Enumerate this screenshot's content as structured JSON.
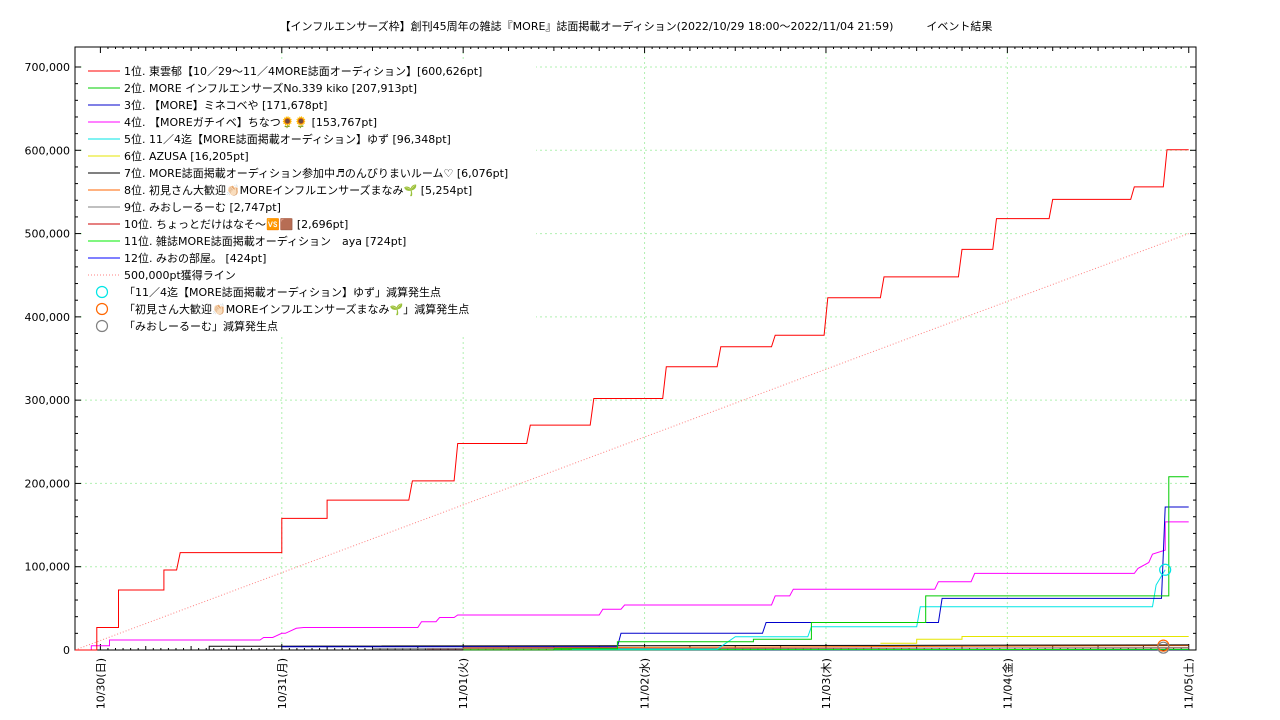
{
  "chart_data": {
    "type": "line",
    "title": "【インフルエンサーズ枠】創刊45周年の雑誌『MORE』誌面掲載オーディション(2022/10/29 18:00〜2022/11/04 21:59)　　　イベント結果",
    "xlabel": "",
    "ylabel": "",
    "ylim": [
      0,
      700000
    ],
    "xlim": [
      -0.14,
      6.04
    ],
    "x_unit_note": "days since 10/30 00:00",
    "x_tick_labels": [
      "10/30(日)",
      "10/31(月)",
      "11/01(火)",
      "11/02(水)",
      "11/03(木)",
      "11/04(金)",
      "11/05(土)"
    ],
    "y_tick_labels": [
      "0",
      "100,000",
      "200,000",
      "300,000",
      "400,000",
      "500,000",
      "600,000",
      "700,000"
    ],
    "y_ticks": [
      0,
      100000,
      200000,
      300000,
      400000,
      500000,
      600000,
      700000
    ],
    "grid": true,
    "legend_position": "top-left",
    "series": [
      {
        "name": "1位. 東雲郁【10／29〜11／4MORE誌面オーディション】[600,626pt]",
        "color": "#ff0000",
        "x": [
          -0.14,
          -0.02,
          -0.02,
          0.1,
          0.1,
          0.35,
          0.35,
          0.42,
          0.44,
          1.0,
          1.0,
          1.25,
          1.25,
          1.7,
          1.72,
          1.95,
          1.97,
          2.35,
          2.37,
          2.7,
          2.72,
          3.1,
          3.12,
          3.4,
          3.42,
          3.7,
          3.72,
          3.99,
          4.01,
          4.3,
          4.32,
          4.73,
          4.75,
          4.92,
          4.94,
          5.23,
          5.25,
          5.68,
          5.7,
          5.86,
          5.88,
          6.0
        ],
        "y": [
          0,
          0,
          27000,
          27000,
          72000,
          72000,
          96000,
          96000,
          117000,
          117000,
          158000,
          158000,
          180000,
          180000,
          203000,
          203000,
          248000,
          248000,
          270000,
          270000,
          302000,
          302000,
          340000,
          340000,
          364000,
          364000,
          378000,
          378000,
          423000,
          423000,
          448000,
          448000,
          481000,
          481000,
          518000,
          518000,
          541000,
          541000,
          556000,
          556000,
          600626,
          600626
        ]
      },
      {
        "name": "2位. MORE インフルエンサーズNo.339 kiko [207,913pt]",
        "color": "#00cc00",
        "x": [
          2.5,
          2.85,
          2.85,
          3.6,
          3.6,
          3.92,
          3.92,
          4.55,
          4.55,
          5.89,
          5.89,
          6.0
        ],
        "y": [
          1500,
          1500,
          10000,
          10000,
          13000,
          13000,
          33000,
          33000,
          65000,
          65000,
          207913,
          207913
        ]
      },
      {
        "name": "3位. 【MORE】ミネコベや [171,678pt]",
        "color": "#0000cc",
        "x": [
          1.0,
          2.85,
          2.87,
          3.65,
          3.67,
          4.62,
          4.64,
          5.85,
          5.87,
          6.0
        ],
        "y": [
          4000,
          4000,
          20000,
          20000,
          33000,
          33000,
          62000,
          62000,
          171678,
          171678
        ]
      },
      {
        "name": "4位. 【MOREガチイベ】ちなつ🌻🌻 [153,767pt]",
        "color": "#ff00ff",
        "x": [
          -0.05,
          -0.05,
          0.05,
          0.05,
          0.88,
          0.9,
          0.95,
          1.0,
          1.02,
          1.08,
          1.12,
          1.75,
          1.77,
          1.85,
          1.87,
          1.95,
          1.97,
          2.75,
          2.77,
          2.87,
          2.89,
          3.7,
          3.72,
          3.8,
          3.82,
          4.6,
          4.62,
          4.8,
          4.82,
          5.7,
          5.72,
          5.78,
          5.8,
          5.87,
          5.87,
          6.0
        ],
        "y": [
          0,
          5000,
          5000,
          12000,
          12000,
          15000,
          15000,
          20000,
          20000,
          26000,
          27000,
          27000,
          34000,
          34000,
          39000,
          39000,
          42000,
          42000,
          49000,
          49000,
          54000,
          54000,
          65000,
          65000,
          73000,
          73000,
          82000,
          82000,
          92000,
          92000,
          98000,
          105000,
          115000,
          120000,
          153767,
          153767
        ]
      },
      {
        "name": "5位. 11／4迄【MORE誌面掲載オーディション】ゆず [96,348pt]",
        "color": "#00e5e5",
        "x": [
          2.6,
          3.4,
          3.5,
          3.9,
          3.92,
          4.5,
          4.52,
          5.8,
          5.82,
          5.87
        ],
        "y": [
          1000,
          1000,
          16000,
          16000,
          28000,
          28000,
          52000,
          52000,
          78000,
          96348
        ]
      },
      {
        "name": "6位. AZUSA [16,205pt]",
        "color": "#e5e500",
        "x": [
          4.3,
          4.5,
          4.5,
          4.75,
          4.75,
          6.0
        ],
        "y": [
          8000,
          8000,
          13000,
          13000,
          16205,
          16205
        ]
      },
      {
        "name": "7位. MORE誌面掲載オーディション参加中♬のんびりまいルーム♡ [6,076pt]",
        "color": "#000000",
        "x": [
          0.6,
          0.6,
          6.0
        ],
        "y": [
          0,
          4500,
          6076
        ]
      },
      {
        "name": "8位. 初見さん大歓迎👏🏻MOREインフルエンサーズまなみ🌱 [5,254pt]",
        "color": "#ff6600",
        "x": [
          2.0,
          6.0
        ],
        "y": [
          2500,
          5254
        ]
      },
      {
        "name": "9位. みおしーるーむ [2,747pt]",
        "color": "#808080",
        "x": [
          1.5,
          6.0
        ],
        "y": [
          1500,
          2747
        ]
      },
      {
        "name": "10位. ちょっとだけはなそ〜🆚🟫 [2,696pt]",
        "color": "#cc0000",
        "x": [
          1.8,
          6.0
        ],
        "y": [
          1500,
          2696
        ]
      },
      {
        "name": "11位. 雑誌MORE誌面掲載オーディション　aya [724pt]",
        "color": "#00ee00",
        "x": [
          2.0,
          6.0
        ],
        "y": [
          300,
          724
        ]
      },
      {
        "name": "12位. みおの部屋。 [424pt]",
        "color": "#0000ff",
        "x": [
          2.5,
          6.0
        ],
        "y": [
          200,
          424
        ]
      }
    ],
    "reference_line": {
      "name": "500,000pt獲得ライン",
      "color": "#ff8080",
      "x": [
        -0.14,
        6.0
      ],
      "y": [
        0,
        500000
      ]
    },
    "markers": [
      {
        "name": "「11／4迄【MORE誌面掲載オーディション】ゆず」減算発生点",
        "color": "#00e5e5",
        "x": 5.87,
        "y": 96348
      },
      {
        "name": "「初見さん大歓迎👏🏻MOREインフルエンサーズまなみ🌱」減算発生点",
        "color": "#ff6600",
        "x": 5.86,
        "y": 5254
      },
      {
        "name": "「みおしーるーむ」減算発生点",
        "color": "#808080",
        "x": 5.86,
        "y": 2747
      }
    ]
  }
}
